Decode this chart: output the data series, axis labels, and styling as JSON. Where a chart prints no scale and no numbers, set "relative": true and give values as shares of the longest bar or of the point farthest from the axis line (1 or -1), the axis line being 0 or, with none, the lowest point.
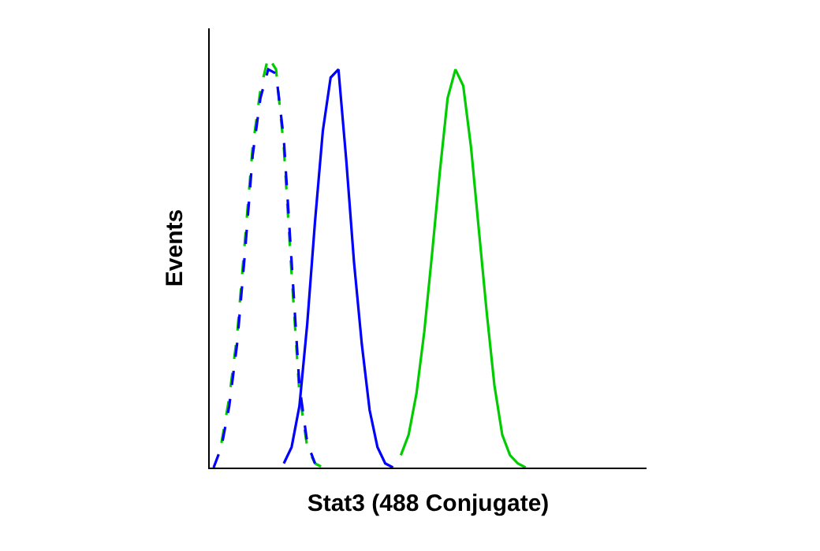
{
  "chart_data": {
    "type": "line",
    "relative": true,
    "xlabel": "Stat3 (488 Conjugate)",
    "ylabel": "Events",
    "grid": false,
    "marker": "none",
    "categories": [
      null,
      null,
      null,
      null,
      null,
      null,
      null,
      null,
      null,
      null,
      null,
      null,
      null,
      null,
      null,
      null,
      null,
      null,
      null,
      null,
      null,
      null,
      null,
      null,
      null,
      null,
      null,
      null,
      null,
      null,
      null,
      null,
      null,
      null,
      null,
      null,
      null,
      null,
      null,
      null,
      null,
      null,
      null,
      null,
      null,
      null,
      null,
      null,
      null,
      null,
      null,
      null,
      null,
      null,
      null,
      null
    ],
    "series": [
      {
        "color": "#00cc00",
        "line_style": "dashed",
        "values": [
          null,
          0.06,
          0.17,
          0.32,
          0.55,
          0.78,
          0.92,
          1,
          0.97,
          0.78,
          0.47,
          0.18,
          0.05,
          0.01,
          0,
          null,
          null,
          null,
          null,
          null,
          null,
          null,
          null,
          null,
          null,
          null,
          null,
          null,
          null,
          null,
          null,
          null,
          null,
          null,
          null,
          null,
          null,
          null,
          null,
          null,
          null,
          null,
          null,
          null,
          null,
          null,
          null,
          null,
          null,
          null,
          null,
          null,
          null,
          null,
          null,
          null
        ]
      },
      {
        "color": "#0000ff",
        "line_style": "dashed",
        "values": [
          0,
          0.05,
          0.15,
          0.3,
          0.52,
          0.76,
          0.9,
          0.97,
          0.96,
          0.8,
          0.5,
          0.2,
          0.06,
          0.01,
          null,
          null,
          null,
          null,
          null,
          null,
          null,
          null,
          null,
          null,
          null,
          null,
          null,
          null,
          null,
          null,
          null,
          null,
          null,
          null,
          null,
          null,
          null,
          null,
          null,
          null,
          null,
          null,
          null,
          null,
          null,
          null,
          null,
          null,
          null,
          null,
          null,
          null,
          null,
          null,
          null,
          null
        ]
      },
      {
        "color": "#0000ff",
        "line_style": "solid",
        "values": [
          null,
          null,
          null,
          null,
          null,
          null,
          null,
          null,
          null,
          0.01,
          0.05,
          0.15,
          0.35,
          0.6,
          0.82,
          0.95,
          0.97,
          0.75,
          0.5,
          0.3,
          0.14,
          0.05,
          0.01,
          0,
          null,
          null,
          null,
          null,
          null,
          null,
          null,
          null,
          null,
          null,
          null,
          null,
          null,
          null,
          null,
          null,
          null,
          null,
          null,
          null,
          null,
          null,
          null,
          null,
          null,
          null,
          null,
          null,
          null,
          null,
          null,
          null
        ]
      },
      {
        "color": "#00cc00",
        "line_style": "solid",
        "values": [
          null,
          null,
          null,
          null,
          null,
          null,
          null,
          null,
          null,
          null,
          null,
          null,
          null,
          null,
          null,
          null,
          null,
          null,
          null,
          null,
          null,
          null,
          null,
          null,
          0.03,
          0.08,
          0.18,
          0.33,
          0.52,
          0.72,
          0.9,
          0.97,
          0.93,
          0.78,
          0.58,
          0.38,
          0.2,
          0.08,
          0.03,
          0.01,
          0,
          null,
          null,
          null,
          null,
          null,
          null,
          null,
          null,
          null,
          null,
          null,
          null,
          null,
          null,
          null
        ]
      }
    ]
  }
}
